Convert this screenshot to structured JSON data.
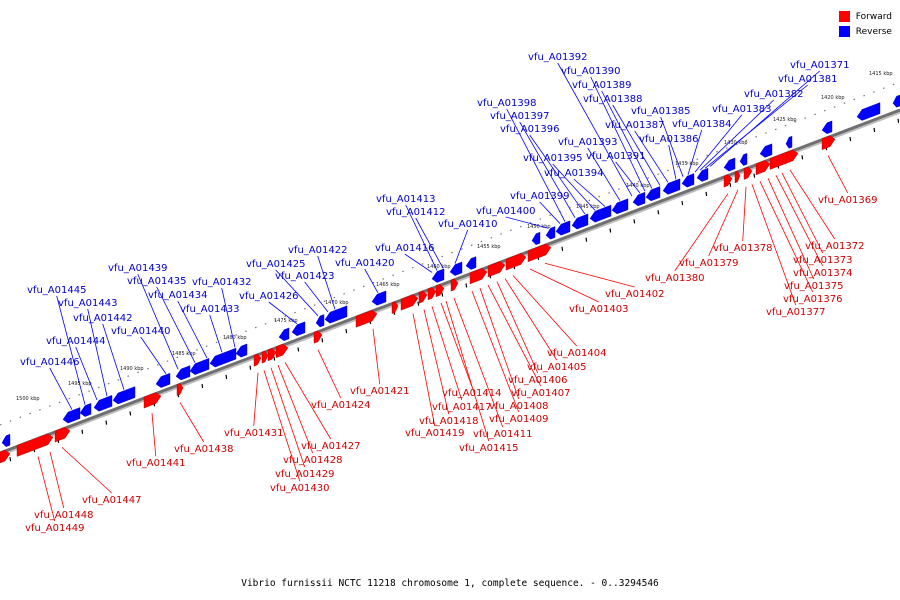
{
  "caption": "Vibrio furnissii NCTC 11218 chromosome 1, complete sequence. - 0..3294546",
  "legend": [
    {
      "label": "Forward",
      "color": "#ff0000"
    },
    {
      "label": "Reverse",
      "color": "#0000ff"
    }
  ],
  "colors": {
    "forward": "#ff0000",
    "reverse": "#0000ff",
    "forward_label": "#cc0000",
    "reverse_label": "#0000cc",
    "backbone": "#808080"
  },
  "scale_ticks": [
    "1415 kbp",
    "1420 kbp",
    "1425 kbp",
    "1430 kbp",
    "1435 kbp",
    "1440 kbp",
    "1445 kbp",
    "1450 kbp",
    "1455 kbp",
    "1460 kbp",
    "1465 kbp",
    "1470 kbp",
    "1475 kbp",
    "1480 kbp",
    "1485 kbp",
    "1490 kbp",
    "1495 kbp",
    "1500 kbp"
  ],
  "reverse_genes": [
    "vfu_A01371",
    "vfu_A01381",
    "vfu_A01382",
    "vfu_A01383",
    "vfu_A01384",
    "vfu_A01385",
    "vfu_A01386",
    "vfu_A01387",
    "vfu_A01388",
    "vfu_A01389",
    "vfu_A01390",
    "vfu_A01391",
    "vfu_A01392",
    "vfu_A01393",
    "vfu_A01394",
    "vfu_A01395",
    "vfu_A01396",
    "vfu_A01397",
    "vfu_A01398",
    "vfu_A01399",
    "vfu_A01400",
    "vfu_A01410",
    "vfu_A01412",
    "vfu_A01413",
    "vfu_A01416",
    "vfu_A01420",
    "vfu_A01422",
    "vfu_A01423",
    "vfu_A01425",
    "vfu_A01426",
    "vfu_A01432",
    "vfu_A01433",
    "vfu_A01434",
    "vfu_A01435",
    "vfu_A01439",
    "vfu_A01440",
    "vfu_A01442",
    "vfu_A01443",
    "vfu_A01444",
    "vfu_A01445",
    "vfu_A01446"
  ],
  "forward_genes": [
    "vfu_A01369",
    "vfu_A01372",
    "vfu_A01373",
    "vfu_A01374",
    "vfu_A01375",
    "vfu_A01376",
    "vfu_A01377",
    "vfu_A01378",
    "vfu_A01379",
    "vfu_A01380",
    "vfu_A01402",
    "vfu_A01403",
    "vfu_A01404",
    "vfu_A01405",
    "vfu_A01406",
    "vfu_A01407",
    "vfu_A01408",
    "vfu_A01409",
    "vfu_A01411",
    "vfu_A01414",
    "vfu_A01415",
    "vfu_A01417",
    "vfu_A01418",
    "vfu_A01419",
    "vfu_A01421",
    "vfu_A01424",
    "vfu_A01427",
    "vfu_A01428",
    "vfu_A01429",
    "vfu_A01430",
    "vfu_A01431",
    "vfu_A01438",
    "vfu_A01441",
    "vfu_A01447",
    "vfu_A01448",
    "vfu_A01449"
  ]
}
